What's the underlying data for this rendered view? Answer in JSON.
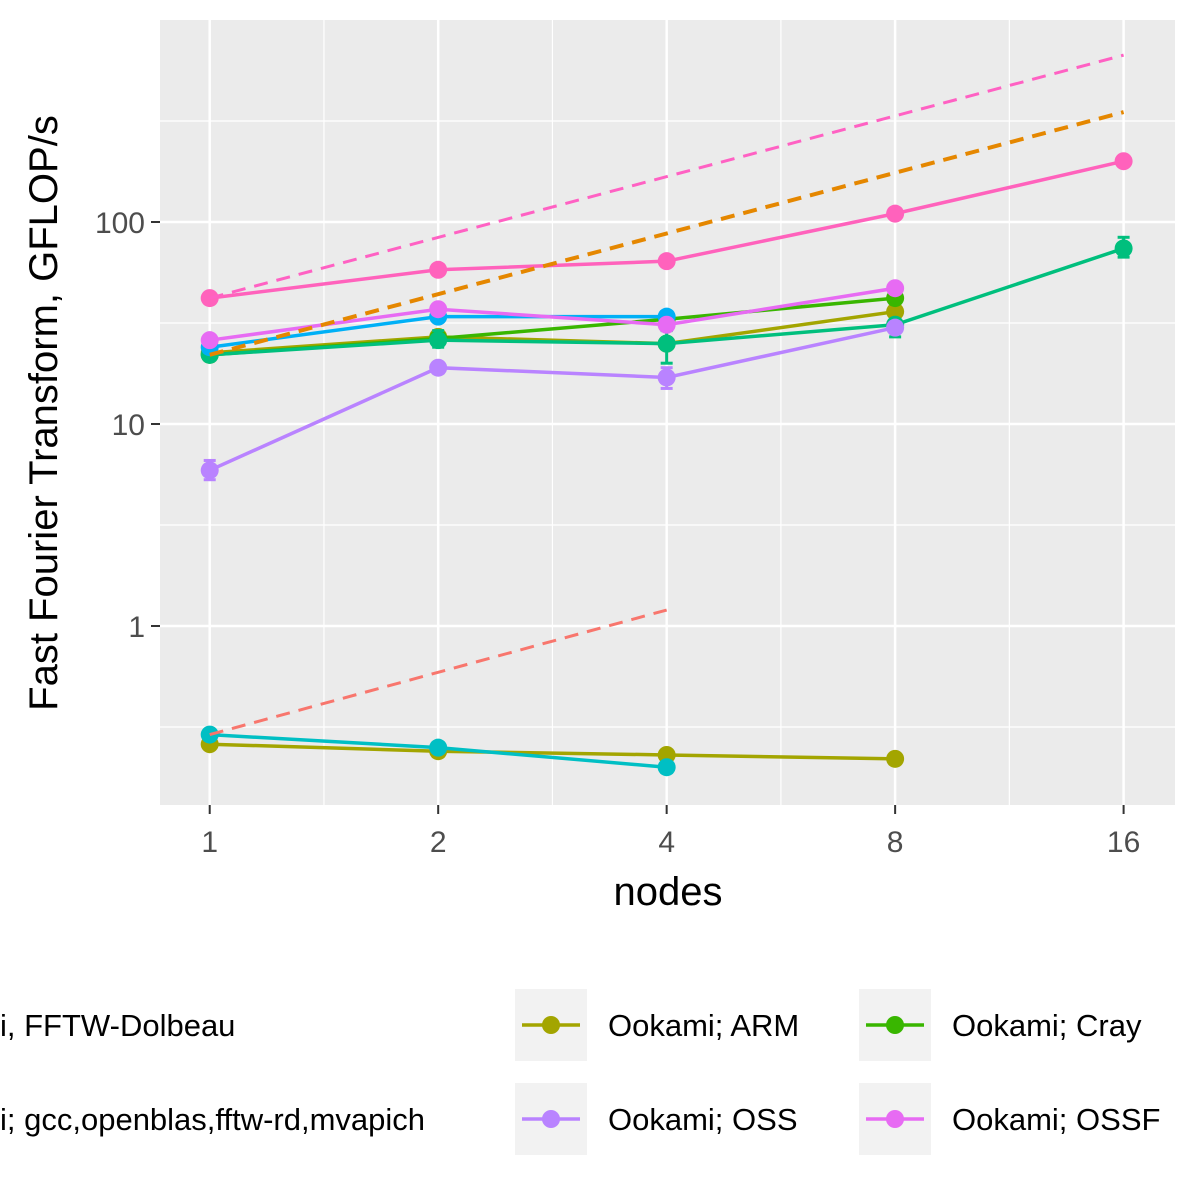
{
  "chart_data": {
    "type": "line",
    "xlabel": "nodes",
    "ylabel": "Fast Fourier Transform, GFLOP/s",
    "x_scale": "log2",
    "y_scale": "log10",
    "xlim": [
      0.86,
      18.7
    ],
    "ylim": [
      0.13,
      1000
    ],
    "x_ticks": [
      1,
      2,
      4,
      8,
      16
    ],
    "x_tick_labels": [
      "1",
      "2",
      "4",
      "8",
      "16"
    ],
    "y_ticks": [
      1,
      10,
      100
    ],
    "y_tick_labels": [
      "1",
      "10",
      "100"
    ],
    "grid": true,
    "legend_position": "bottom",
    "series": [
      {
        "name": "Ookami; ARM",
        "color": "#A3A500",
        "style": "solid",
        "legend": true,
        "points": [
          [
            1,
            0.26
          ],
          [
            2,
            0.24
          ],
          [
            4,
            0.23
          ],
          [
            8,
            0.22
          ]
        ]
      },
      {
        "name": "",
        "color": "#A3A500",
        "style": "solid",
        "legend": false,
        "points": [
          [
            1,
            22.5
          ],
          [
            2,
            27
          ],
          [
            4,
            25
          ],
          [
            8,
            36
          ]
        ]
      },
      {
        "name": "Ookami; Cray",
        "color": "#39B600",
        "style": "solid",
        "legend": true,
        "points": [
          [
            1,
            22
          ],
          [
            2,
            26.5
          ],
          [
            4,
            33
          ],
          [
            8,
            42
          ]
        ]
      },
      {
        "name": "",
        "color": "#00BF7D",
        "style": "solid",
        "legend": false,
        "points": [
          [
            1,
            22
          ],
          [
            2,
            26
          ],
          [
            4,
            25
          ],
          [
            8,
            31
          ],
          [
            16,
            74
          ]
        ],
        "errors": [
          null,
          [
            24,
            29
          ],
          [
            20,
            29
          ],
          [
            27,
            33
          ],
          [
            67,
            84
          ]
        ]
      },
      {
        "name": "",
        "color": "#00BFC4",
        "style": "solid",
        "legend": false,
        "points": [
          [
            1,
            0.29
          ],
          [
            2,
            0.25
          ],
          [
            4,
            0.2
          ]
        ]
      },
      {
        "name": "",
        "color": "#00B0F6",
        "style": "solid",
        "legend": false,
        "points": [
          [
            1,
            24
          ],
          [
            2,
            34
          ],
          [
            4,
            34
          ]
        ]
      },
      {
        "name": "Ookami; OSS",
        "color": "#B983FF",
        "style": "solid",
        "legend": true,
        "points": [
          [
            1,
            5.9
          ],
          [
            2,
            19
          ],
          [
            4,
            17
          ],
          [
            8,
            30
          ]
        ],
        "errors": [
          [
            5.3,
            6.6
          ],
          null,
          [
            15,
            19
          ],
          null
        ]
      },
      {
        "name": "Ookami; OSSF",
        "color": "#E76BF3",
        "style": "solid",
        "legend": true,
        "points": [
          [
            1,
            26
          ],
          [
            2,
            37
          ],
          [
            4,
            31
          ],
          [
            8,
            47
          ]
        ]
      },
      {
        "name": "",
        "color": "#FF62BC",
        "style": "solid",
        "legend": false,
        "points": [
          [
            1,
            42
          ],
          [
            2,
            58
          ],
          [
            4,
            64
          ],
          [
            8,
            110
          ],
          [
            16,
            200
          ]
        ]
      },
      {
        "name": "",
        "color": "#F8766D",
        "style": "dashed",
        "legend": false,
        "points": [
          [
            1,
            0.29
          ],
          [
            4,
            1.2
          ]
        ]
      },
      {
        "name": "",
        "color": "#E58700",
        "style": "dashed",
        "legend": false,
        "points": [
          [
            1,
            22
          ],
          [
            16,
            350
          ]
        ]
      },
      {
        "name": "",
        "color": "#FF61C3",
        "style": "dashed",
        "legend": false,
        "points": [
          [
            1,
            42
          ],
          [
            16,
            670
          ]
        ]
      }
    ]
  },
  "legend": {
    "items": [
      {
        "label": "i, FFTW-Dolbeau",
        "color": "#F8766D"
      },
      {
        "label": "Ookami; ARM",
        "color": "#A3A500"
      },
      {
        "label": "Ookami; Cray",
        "color": "#39B600"
      },
      {
        "label": "i; gcc,openblas,fftw-rd,mvapich",
        "color": "#00B0F6"
      },
      {
        "label": "Ookami; OSS",
        "color": "#B983FF"
      },
      {
        "label": "Ookami; OSSF",
        "color": "#E76BF3"
      }
    ]
  }
}
